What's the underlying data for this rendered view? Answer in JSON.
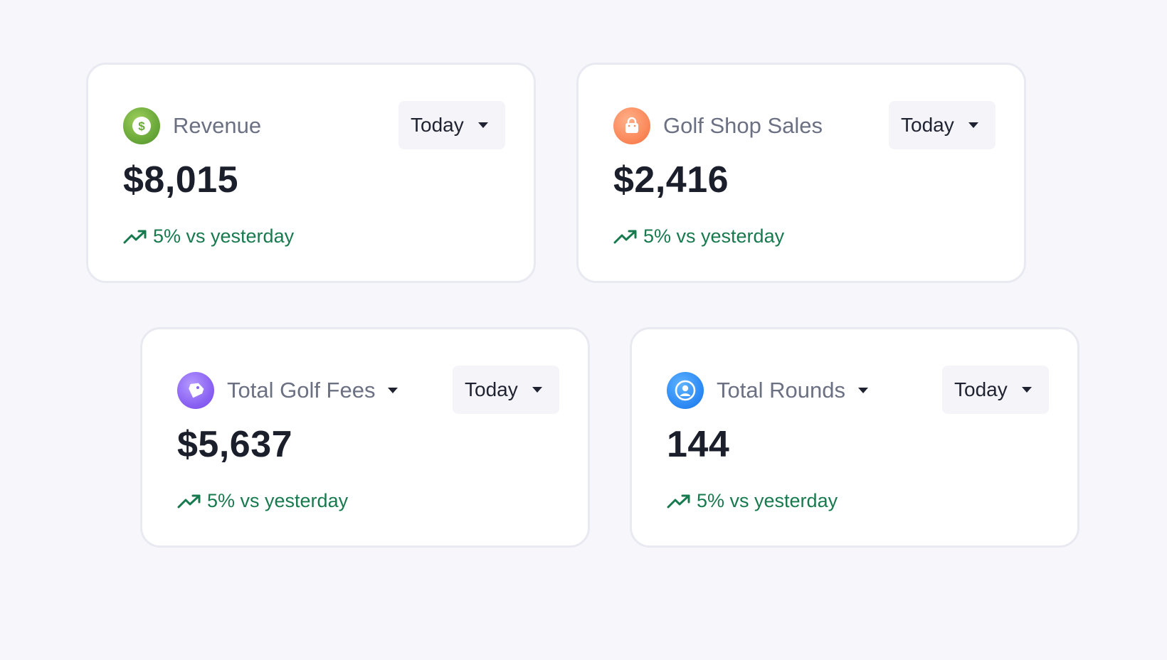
{
  "cards": [
    {
      "title": "Revenue",
      "icon": "dollar-icon",
      "icon_color": "#6aa93a",
      "has_title_dropdown": false,
      "period": "Today",
      "value": "$8,015",
      "trend_icon": "trending-up-icon",
      "trend": "5% vs yesterday"
    },
    {
      "title": "Golf Shop Sales",
      "icon": "shopping-bag-icon",
      "icon_color": "#fb8a5c",
      "has_title_dropdown": false,
      "period": "Today",
      "value": "$2,416",
      "trend_icon": "trending-up-icon",
      "trend": "5% vs yesterday"
    },
    {
      "title": "Total Golf Fees",
      "icon": "price-tag-icon",
      "icon_color": "#8b63f3",
      "has_title_dropdown": true,
      "period": "Today",
      "value": "$5,637",
      "trend_icon": "trending-up-icon",
      "trend": "5% vs yesterday"
    },
    {
      "title": "Total Rounds",
      "icon": "user-icon",
      "icon_color": "#2f8cf5",
      "has_title_dropdown": true,
      "period": "Today",
      "value": "144",
      "trend_icon": "trending-up-icon",
      "trend": "5% vs yesterday"
    }
  ],
  "colors": {
    "background": "#f7f7fb",
    "card_border": "#e9e9f2",
    "trend_positive": "#177a4e",
    "value_text": "#1b1e2b",
    "title_text": "#6b7083"
  }
}
